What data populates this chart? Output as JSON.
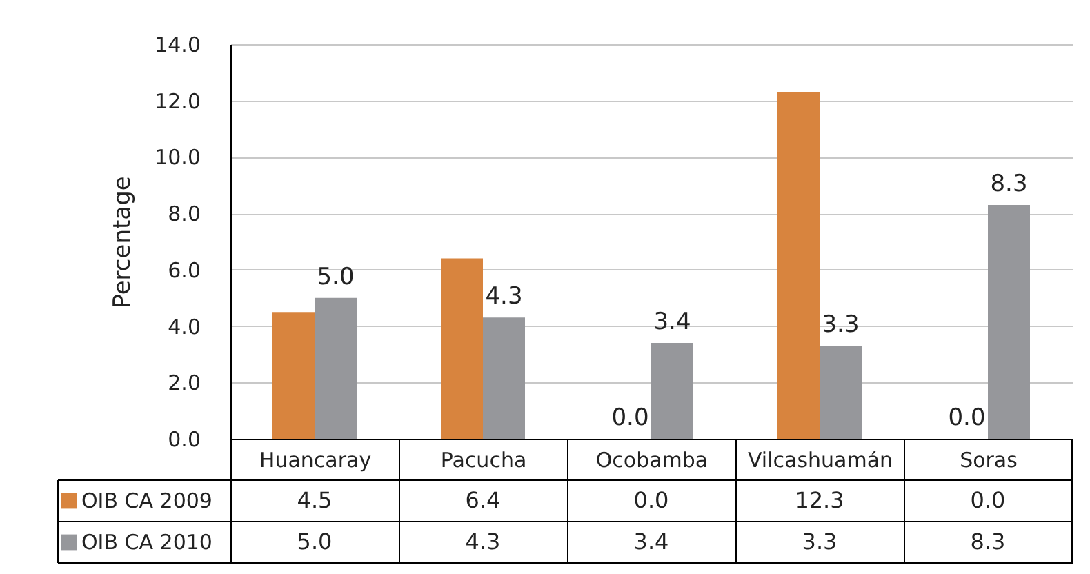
{
  "chart_data": {
    "type": "bar",
    "ylabel": "Percentage",
    "categories": [
      "Huancaray",
      "Pacucha",
      "Ocobamba",
      "Vilcashuamán",
      "Soras"
    ],
    "series": [
      {
        "name": "OIB CA 2009",
        "color": "#d8843e",
        "values": [
          4.5,
          6.4,
          0.0,
          12.3,
          0.0
        ],
        "value_labels": [
          "4.5",
          "6.4",
          "0.0",
          "12.3",
          "0.0"
        ]
      },
      {
        "name": "OIB CA 2010",
        "color": "#96979b",
        "values": [
          5.0,
          4.3,
          3.4,
          3.3,
          8.3
        ],
        "value_labels": [
          "5.0",
          "4.3",
          "3.4",
          "3.3",
          "8.3"
        ]
      }
    ],
    "annotations": [
      {
        "text": "5.0",
        "x": "Huancaray",
        "y": 5.0
      },
      {
        "text": "4.3",
        "x": "Pacucha",
        "y": 4.3
      },
      {
        "text": "0.0",
        "x": "Ocobamba",
        "y": 0.0
      },
      {
        "text": "3.4",
        "x": "Ocobamba",
        "y": 3.4
      },
      {
        "text": "3.3",
        "x": "Vilcashuamán",
        "y": 3.3
      },
      {
        "text": "0.0",
        "x": "Soras",
        "y": 0.0
      },
      {
        "text": "8.3",
        "x": "Soras",
        "y": 8.3
      }
    ],
    "ylim": [
      0,
      14
    ],
    "yticks": [
      {
        "value": 0,
        "label": "0.0"
      },
      {
        "value": 2,
        "label": "2.0"
      },
      {
        "value": 4,
        "label": "4.0"
      },
      {
        "value": 6,
        "label": "6.0"
      },
      {
        "value": 8,
        "label": "8.0"
      },
      {
        "value": 10,
        "label": "10.0"
      },
      {
        "value": 12,
        "label": "12.0"
      },
      {
        "value": 14,
        "label": "14.0"
      }
    ],
    "grid": "y",
    "legend": "bottom left"
  }
}
